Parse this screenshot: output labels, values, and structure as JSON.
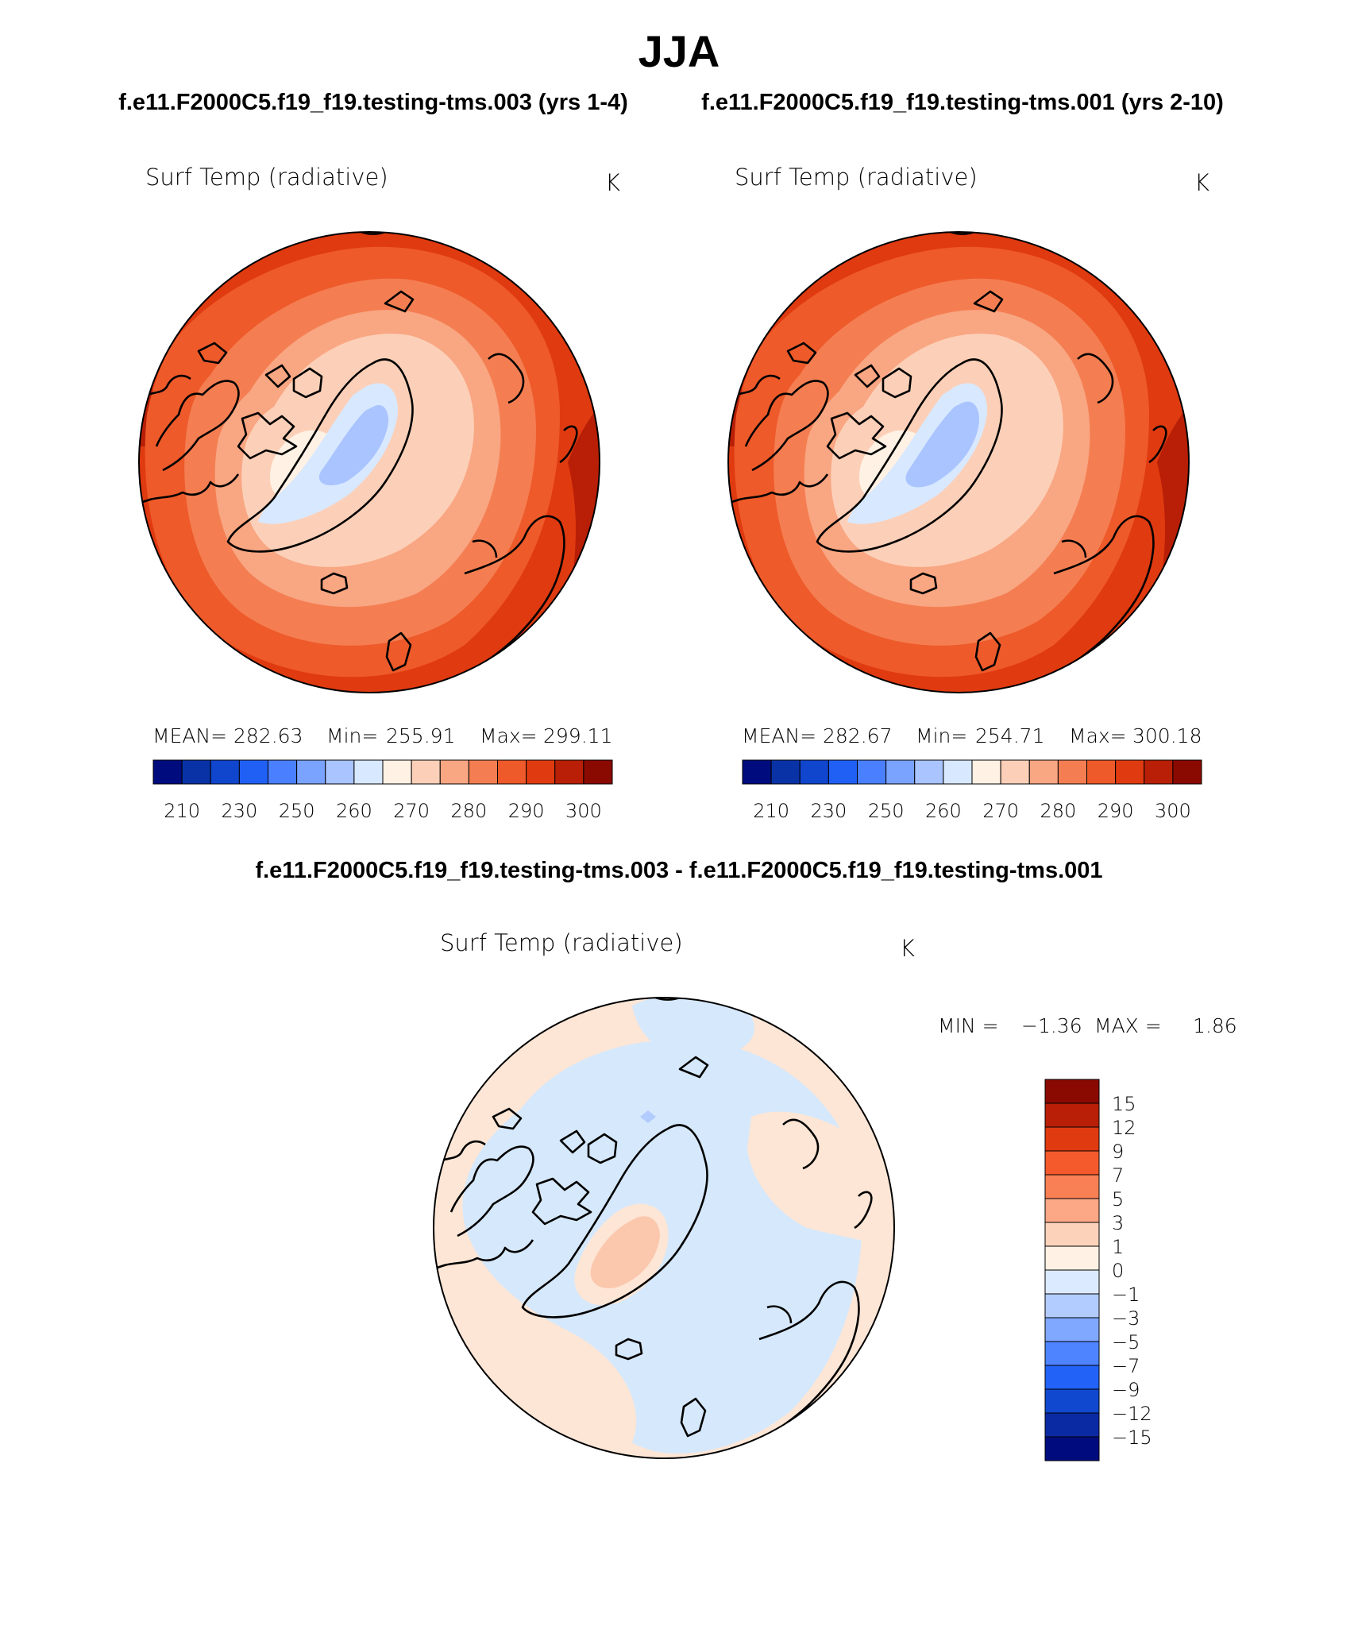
{
  "title": "JJA",
  "panel_titles": {
    "left": "f.e11.F2000C5.f19_f19.testing-tms.003 (yrs 1-4)",
    "right": "f.e11.F2000C5.f19_f19.testing-tms.001 (yrs 2-10)",
    "diff": "f.e11.F2000C5.f19_f19.testing-tms.003 - f.e11.F2000C5.f19_f19.testing-tms.001"
  },
  "panels": [
    {
      "id": "left",
      "variable": "Surf Temp (radiative)",
      "units": "K",
      "mean_label": "MEAN=",
      "mean": "282.63",
      "min_label": "Min=",
      "min": "255.91",
      "max_label": "Max=",
      "max": "299.11"
    },
    {
      "id": "right",
      "variable": "Surf Temp (radiative)",
      "units": "K",
      "mean_label": "MEAN=",
      "mean": "282.67",
      "min_label": "Min=",
      "min": "254.71",
      "max_label": "Max=",
      "max": "300.18"
    },
    {
      "id": "diff",
      "variable": "Surf Temp (radiative)",
      "units": "K",
      "min_label": "MIN =",
      "min": "−1.36",
      "max_label": "MAX =",
      "max": "1.86"
    }
  ],
  "colorbar_main": {
    "colors": [
      "#000c7e",
      "#0832a6",
      "#1046ce",
      "#2060f4",
      "#4a80ff",
      "#7aa2ff",
      "#a9c4ff",
      "#d8e8ff",
      "#fff2e4",
      "#fcd0b8",
      "#f9a682",
      "#f47e52",
      "#ee5a2a",
      "#e03a10",
      "#b81f06",
      "#8a0a02"
    ],
    "tick_labels": [
      "210",
      "230",
      "250",
      "260",
      "270",
      "280",
      "290",
      "300"
    ]
  },
  "colorbar_diff": {
    "colors": [
      "#000c7e",
      "#0a2aa4",
      "#1048d0",
      "#2262f6",
      "#4e84ff",
      "#80a8ff",
      "#b2ccff",
      "#dceaff",
      "#fff2e4",
      "#fcd2ba",
      "#fca886",
      "#f98054",
      "#f45a2c",
      "#e03a10",
      "#b81f06",
      "#8a0a02"
    ],
    "tick_labels": [
      "15",
      "12",
      "9",
      "7",
      "5",
      "3",
      "1",
      "0",
      "−1",
      "−3",
      "−5",
      "−7",
      "−9",
      "−12",
      "−15"
    ]
  },
  "map_fill_colors": {
    "abs_hot": "#b81f06",
    "abs_warm": "#e03a10",
    "abs_mid": "#ee5a2a",
    "abs_mild": "#f47e52",
    "abs_cool": "#f9a682",
    "abs_cold": "#fcd0b8",
    "abs_ice": "#fff2e4",
    "abs_pale": "#d8e8ff",
    "abs_blue": "#a9c4ff",
    "diff_pos": "#fde6d6",
    "diff_pos2": "#fbc8ad",
    "diff_neg": "#d6e8fb",
    "diff_neg2": "#b2ccff"
  }
}
